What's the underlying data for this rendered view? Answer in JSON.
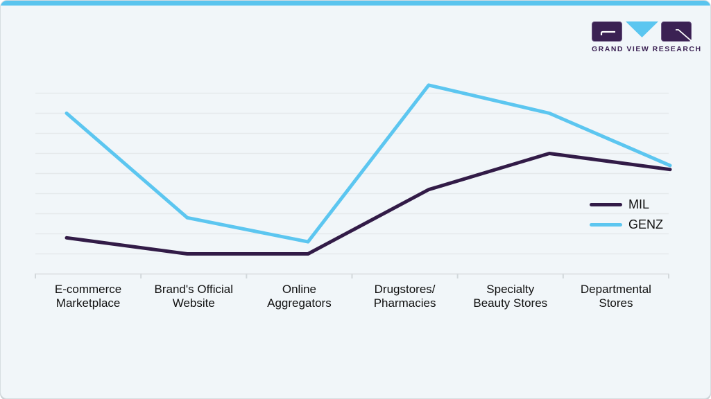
{
  "branding": {
    "logo_text": "GRAND VIEW RESEARCH",
    "logo_purple": "#3b2153",
    "logo_blue": "#5bc6f0"
  },
  "colors": {
    "card_background": "#f1f6f9",
    "top_accent_bar": "#5ac4ee",
    "gridline": "#e5e9eb",
    "axis_line": "#dee2e5",
    "tick": "#d2d8db",
    "label_text": "#101010"
  },
  "chart_data": {
    "type": "line",
    "categories": [
      "E-commerce\nMarketplace",
      "Brand's Official\nWebsite",
      "Online\nAggregators",
      "Drugstores/\nPharmacies",
      "Specialty\nBeauty Stores",
      "Departmental\nStores"
    ],
    "series": [
      {
        "name": "MIL",
        "color": "#321b47",
        "values": [
          9,
          5,
          5,
          21,
          30,
          26
        ]
      },
      {
        "name": "GENZ",
        "color": "#5cc6f0",
        "values": [
          40,
          14,
          8,
          47,
          40,
          27
        ]
      }
    ],
    "title": "",
    "xlabel": "",
    "ylabel": "",
    "ylim": [
      0,
      50
    ],
    "y_gridline_step": 5,
    "y_axis_labels": "none",
    "grid": "horizontal-only",
    "legend_position": "middle-right"
  }
}
